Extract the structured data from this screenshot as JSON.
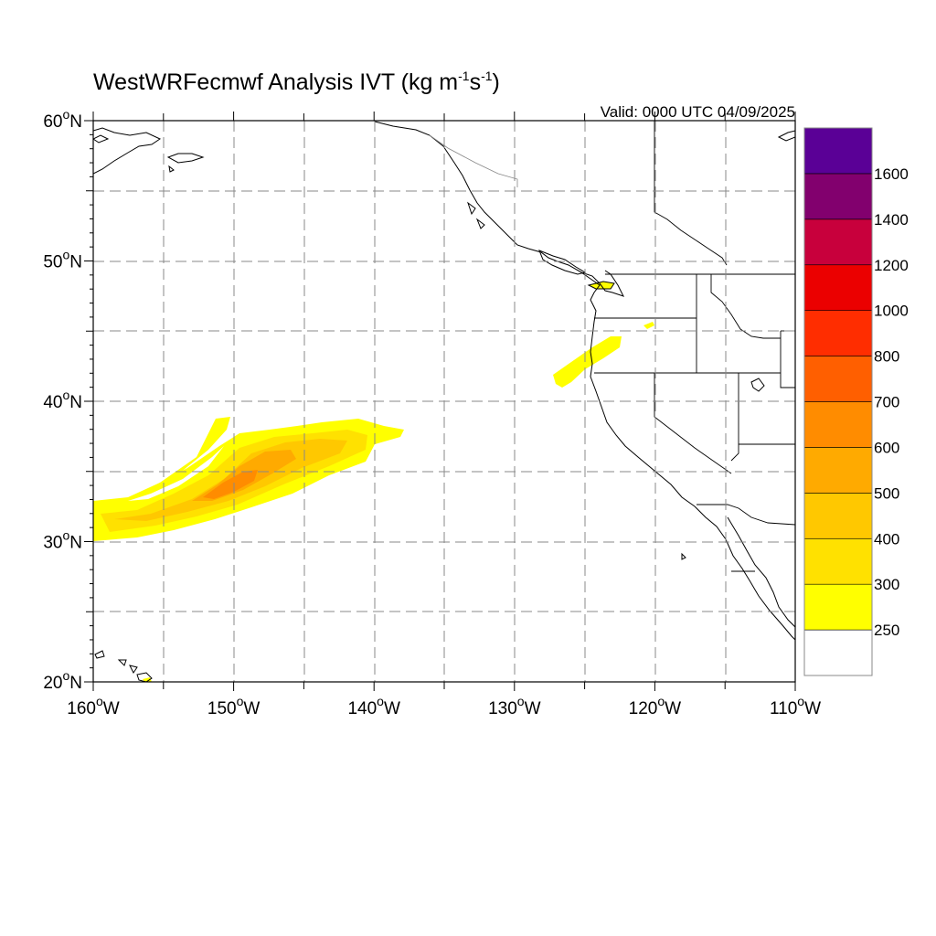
{
  "title": {
    "main": "WestWRFecmwf Analysis IVT (kg m",
    "exp1": "-1",
    "mid": "s",
    "exp2": "-1",
    "end": ")"
  },
  "valid_time": "Valid: 0000 UTC 04/09/2025",
  "lat_labels": [
    "20",
    "30",
    "40",
    "50",
    "60"
  ],
  "lon_labels": [
    "160",
    "150",
    "140",
    "130",
    "120",
    "110"
  ],
  "degree_symbol": "o",
  "north_suffix": "N",
  "west_suffix": "W",
  "colorbar": {
    "levels": [
      "250",
      "300",
      "400",
      "500",
      "600",
      "700",
      "800",
      "1000",
      "1200",
      "1400",
      "1600"
    ],
    "colors": [
      "#ffffff",
      "#ffff00",
      "#ffe100",
      "#ffc800",
      "#ffaa00",
      "#ff8c00",
      "#ff5f00",
      "#ff2d00",
      "#eb0000",
      "#c8003c",
      "#82006e",
      "#5a0096"
    ]
  },
  "map_extent": {
    "lon_min": -160,
    "lon_max": -110,
    "lat_min": 20,
    "lat_max": 60
  }
}
